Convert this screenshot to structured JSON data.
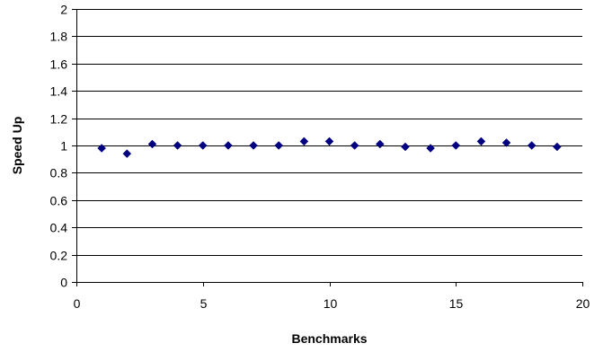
{
  "chart_data": {
    "type": "scatter",
    "xlabel": "Benchmarks",
    "ylabel": "Speed Up",
    "xlim": [
      0,
      20
    ],
    "ylim": [
      0,
      2
    ],
    "x_ticks": [
      0,
      5,
      10,
      15,
      20
    ],
    "y_ticks": [
      0,
      0.2,
      0.4,
      0.6,
      0.8,
      1,
      1.2,
      1.4,
      1.6,
      1.8,
      2
    ],
    "x_tick_labels": [
      "0",
      "5",
      "10",
      "15",
      "20"
    ],
    "y_tick_labels": [
      "0",
      "0.2",
      "0.4",
      "0.6",
      "0.8",
      "1",
      "1.2",
      "1.4",
      "1.6",
      "1.8",
      "2"
    ],
    "grid": "horizontal",
    "marker": "diamond",
    "marker_color": "#000080",
    "series": [
      {
        "x": [
          1,
          2,
          3,
          4,
          5,
          6,
          7,
          8,
          9,
          10,
          11,
          12,
          13,
          14,
          15,
          16,
          17,
          18,
          19
        ],
        "y": [
          0.98,
          0.94,
          1.01,
          1.0,
          1.0,
          1.0,
          1.0,
          1.0,
          1.03,
          1.03,
          1.0,
          1.01,
          0.99,
          0.98,
          1.0,
          1.03,
          1.02,
          1.0,
          0.99
        ]
      }
    ]
  }
}
